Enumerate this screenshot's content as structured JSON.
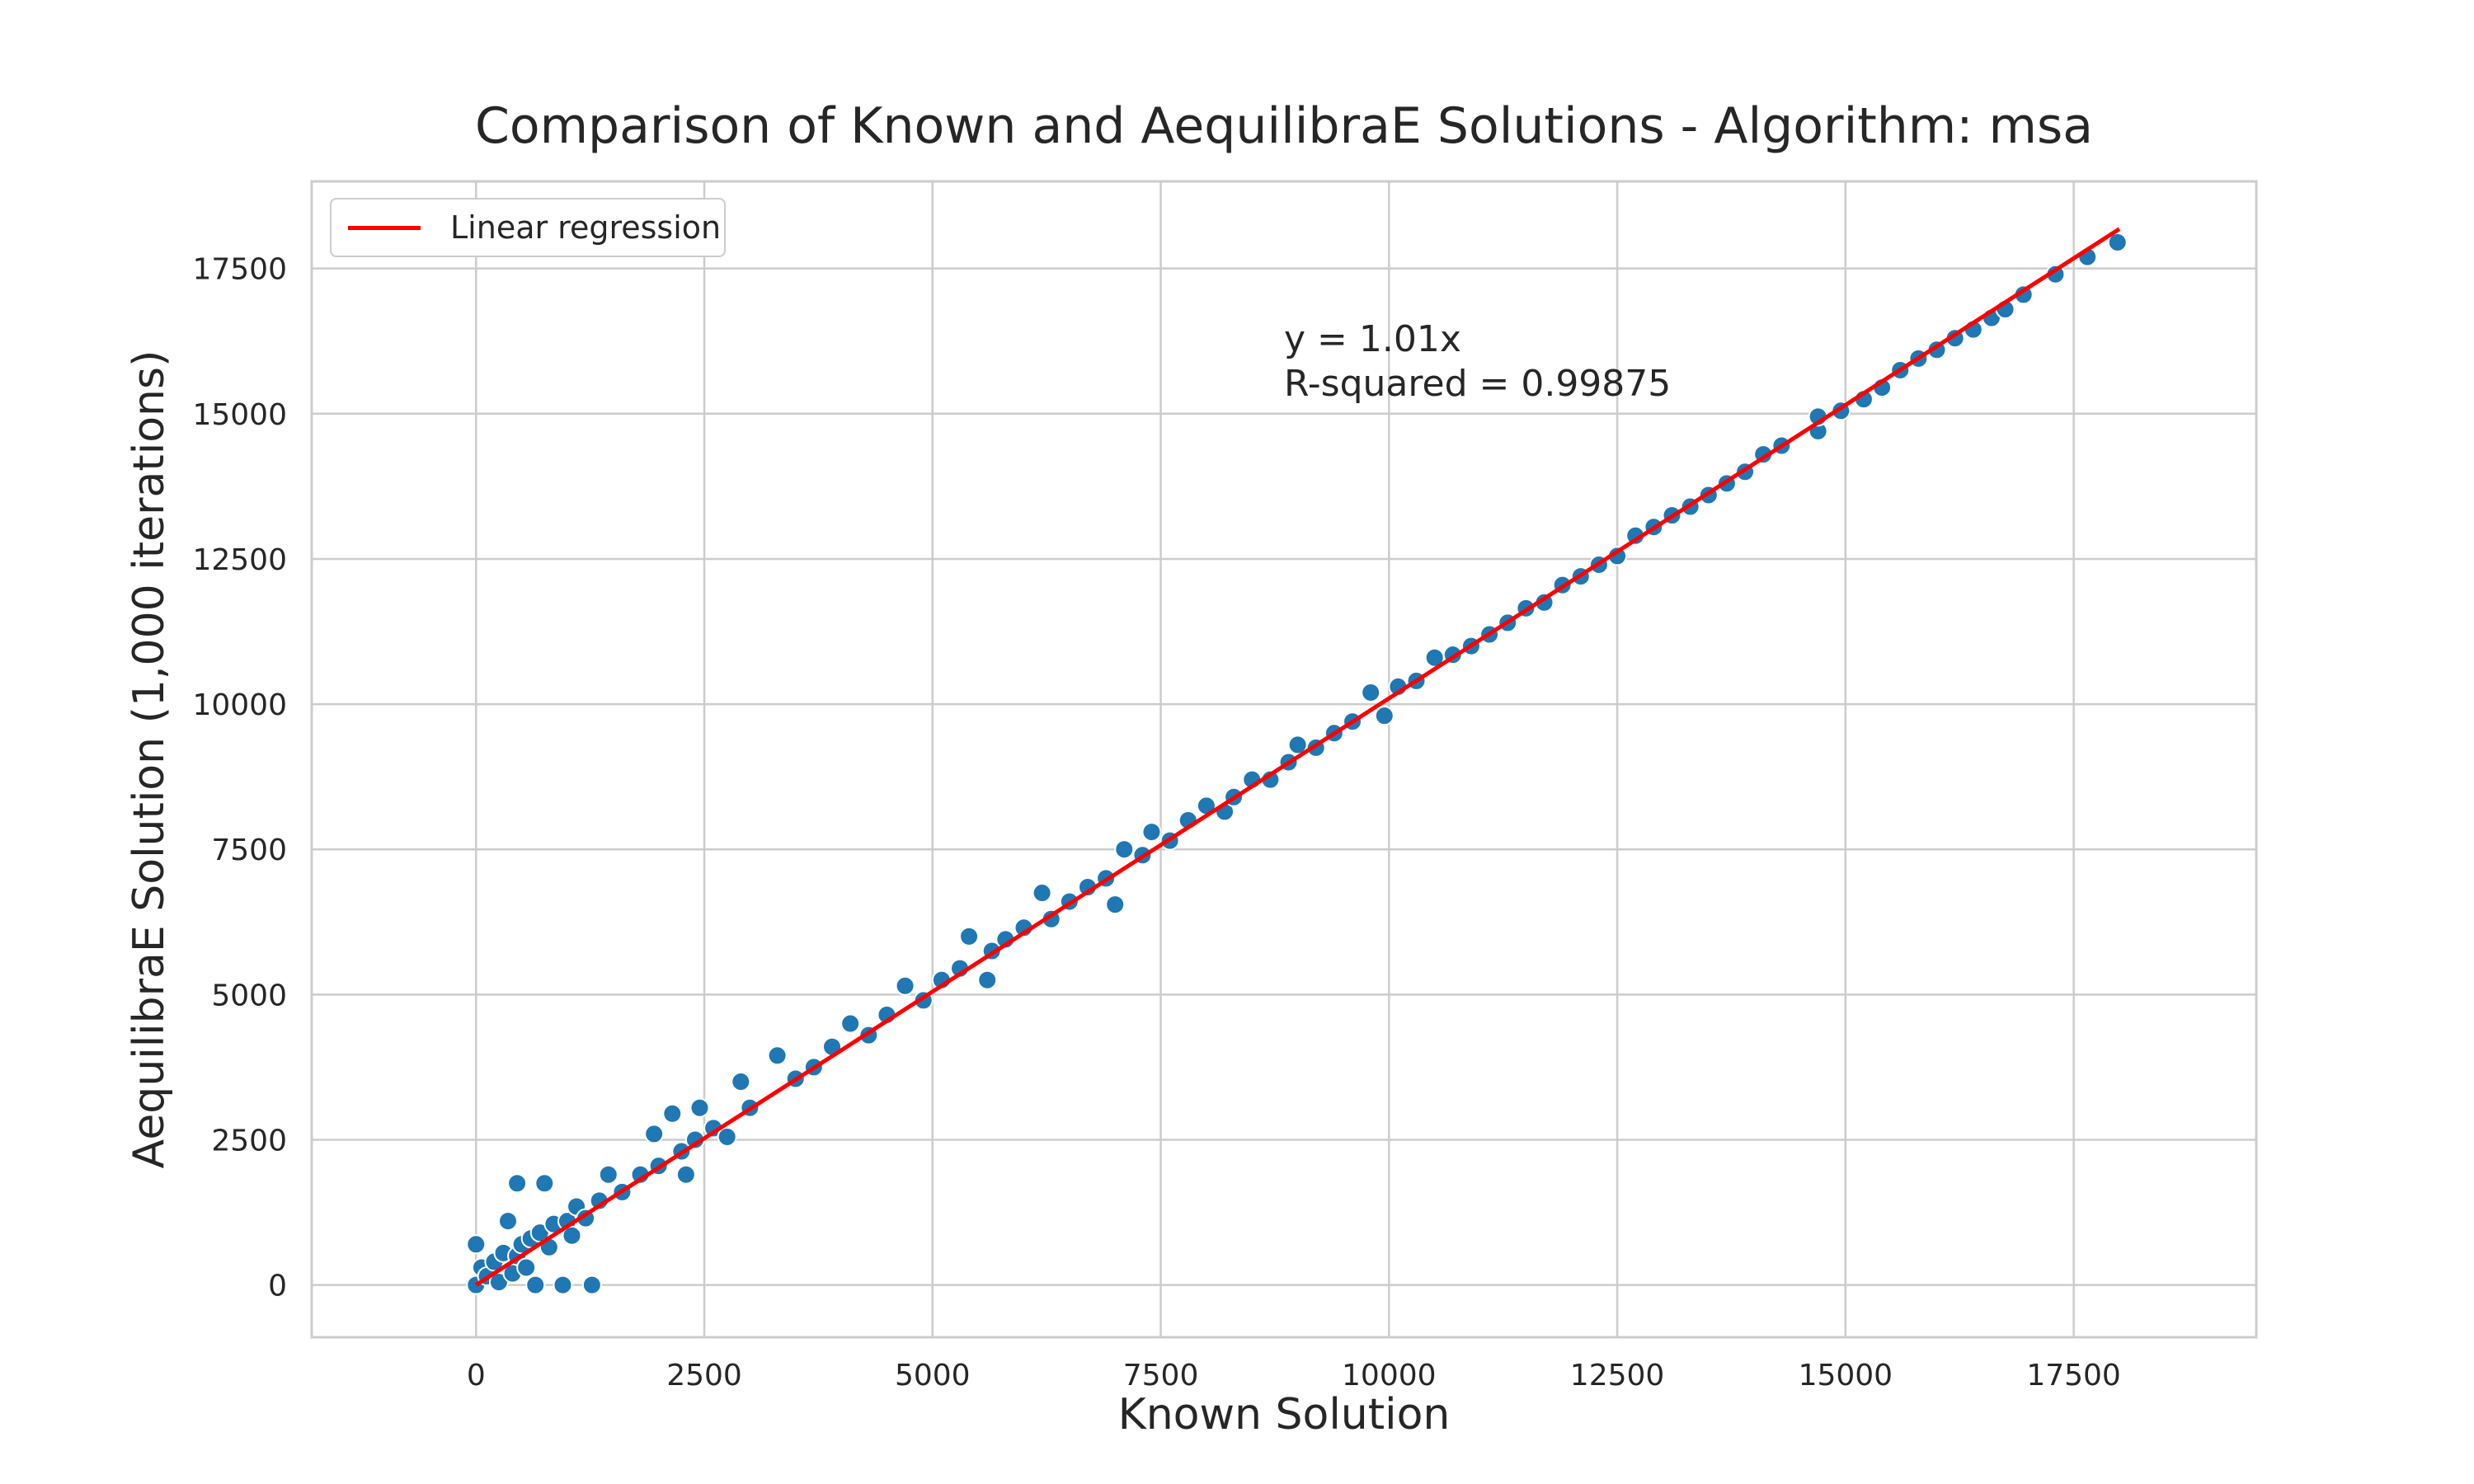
{
  "chart_data": {
    "type": "scatter",
    "title": "Comparison of Known and AequilibraE Solutions - Algorithm: msa",
    "xlabel": "Known Solution",
    "ylabel": "AequilibraE Solution (1,000 iterations)",
    "xlim": [
      -1800,
      19500
    ],
    "ylim": [
      -900,
      19000
    ],
    "xticks": [
      0,
      2500,
      5000,
      7500,
      10000,
      12500,
      15000,
      17500
    ],
    "xtick_labels": [
      "0",
      "2500",
      "5000",
      "7500",
      "10000",
      "12500",
      "15000",
      "17500"
    ],
    "yticks": [
      0,
      2500,
      5000,
      7500,
      10000,
      12500,
      15000,
      17500
    ],
    "ytick_labels": [
      "0",
      "2500",
      "5000",
      "7500",
      "10000",
      "12500",
      "15000",
      "17500"
    ],
    "grid": true,
    "legend": {
      "placement": "top-left",
      "entries": [
        "Linear regression"
      ]
    },
    "series": [
      {
        "type": "scatter",
        "color": "#1f77b4",
        "points": [
          [
            0,
            0
          ],
          [
            0,
            700
          ],
          [
            60,
            300
          ],
          [
            120,
            150
          ],
          [
            200,
            400
          ],
          [
            250,
            50
          ],
          [
            300,
            550
          ],
          [
            350,
            1100
          ],
          [
            400,
            200
          ],
          [
            450,
            500
          ],
          [
            450,
            1750
          ],
          [
            500,
            700
          ],
          [
            550,
            300
          ],
          [
            600,
            800
          ],
          [
            650,
            0
          ],
          [
            700,
            900
          ],
          [
            750,
            1750
          ],
          [
            800,
            650
          ],
          [
            850,
            1050
          ],
          [
            950,
            0
          ],
          [
            1000,
            1100
          ],
          [
            1050,
            850
          ],
          [
            1100,
            1350
          ],
          [
            1200,
            1150
          ],
          [
            1270,
            0
          ],
          [
            1350,
            1450
          ],
          [
            1450,
            1900
          ],
          [
            1600,
            1600
          ],
          [
            1800,
            1900
          ],
          [
            1950,
            2600
          ],
          [
            2000,
            2050
          ],
          [
            2150,
            2950
          ],
          [
            2250,
            2300
          ],
          [
            2300,
            1900
          ],
          [
            2400,
            2500
          ],
          [
            2450,
            3050
          ],
          [
            2600,
            2700
          ],
          [
            2750,
            2550
          ],
          [
            2900,
            3500
          ],
          [
            3000,
            3050
          ],
          [
            3300,
            3950
          ],
          [
            3500,
            3550
          ],
          [
            3700,
            3750
          ],
          [
            3900,
            4100
          ],
          [
            4100,
            4500
          ],
          [
            4300,
            4300
          ],
          [
            4500,
            4650
          ],
          [
            4700,
            5150
          ],
          [
            4900,
            4900
          ],
          [
            5100,
            5250
          ],
          [
            5300,
            5450
          ],
          [
            5400,
            6000
          ],
          [
            5600,
            5250
          ],
          [
            5650,
            5750
          ],
          [
            5800,
            5950
          ],
          [
            6000,
            6150
          ],
          [
            6200,
            6750
          ],
          [
            6300,
            6300
          ],
          [
            6500,
            6600
          ],
          [
            6700,
            6850
          ],
          [
            6900,
            7000
          ],
          [
            7000,
            6550
          ],
          [
            7100,
            7500
          ],
          [
            7300,
            7400
          ],
          [
            7400,
            7800
          ],
          [
            7600,
            7650
          ],
          [
            7800,
            8000
          ],
          [
            8000,
            8250
          ],
          [
            8200,
            8150
          ],
          [
            8300,
            8400
          ],
          [
            8500,
            8700
          ],
          [
            8700,
            8700
          ],
          [
            8900,
            9000
          ],
          [
            9000,
            9300
          ],
          [
            9200,
            9250
          ],
          [
            9400,
            9500
          ],
          [
            9600,
            9700
          ],
          [
            9800,
            10200
          ],
          [
            9950,
            9800
          ],
          [
            10100,
            10300
          ],
          [
            10300,
            10400
          ],
          [
            10500,
            10800
          ],
          [
            10700,
            10850
          ],
          [
            10900,
            11000
          ],
          [
            11100,
            11200
          ],
          [
            11300,
            11400
          ],
          [
            11500,
            11650
          ],
          [
            11700,
            11750
          ],
          [
            11900,
            12050
          ],
          [
            12100,
            12200
          ],
          [
            12300,
            12400
          ],
          [
            12500,
            12550
          ],
          [
            12700,
            12900
          ],
          [
            12900,
            13050
          ],
          [
            13100,
            13250
          ],
          [
            13300,
            13400
          ],
          [
            13500,
            13600
          ],
          [
            13700,
            13800
          ],
          [
            13900,
            14000
          ],
          [
            14100,
            14300
          ],
          [
            14300,
            14450
          ],
          [
            14700,
            14700
          ],
          [
            14700,
            14950
          ],
          [
            14950,
            15050
          ],
          [
            15200,
            15250
          ],
          [
            15400,
            15450
          ],
          [
            15600,
            15750
          ],
          [
            15800,
            15950
          ],
          [
            16000,
            16100
          ],
          [
            16200,
            16300
          ],
          [
            16400,
            16450
          ],
          [
            16600,
            16650
          ],
          [
            16750,
            16800
          ],
          [
            16950,
            17050
          ],
          [
            17300,
            17400
          ],
          [
            17650,
            17700
          ],
          [
            17980,
            17950
          ]
        ]
      },
      {
        "type": "line",
        "name": "Linear regression",
        "color": "#ff0000",
        "x": [
          0,
          18000
        ],
        "y": [
          0,
          18180
        ]
      }
    ],
    "annotations": [
      "y = 1.01x",
      "R-squared = 0.99875"
    ]
  }
}
